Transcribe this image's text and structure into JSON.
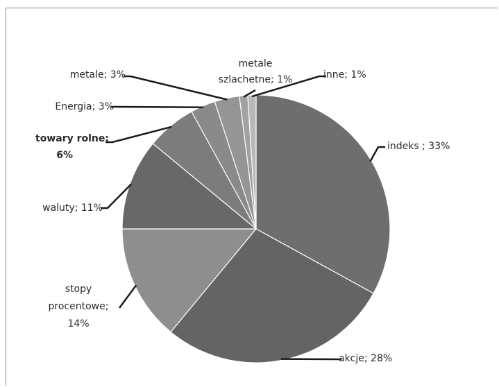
{
  "chart_data": {
    "type": "pie",
    "title": "",
    "slices": [
      {
        "key": "indeks",
        "lines": [
          "indeks ; 33%"
        ],
        "value": 33,
        "color": "#6e6e6e",
        "bold": false
      },
      {
        "key": "akcje",
        "lines": [
          "akcje; 28%"
        ],
        "value": 28,
        "color": "#646464",
        "bold": false
      },
      {
        "key": "stopy",
        "lines": [
          "stopy",
          "procentowe;",
          "14%"
        ],
        "value": 14,
        "color": "#8e8e8e",
        "bold": false
      },
      {
        "key": "waluty",
        "lines": [
          "waluty; 11%"
        ],
        "value": 11,
        "color": "#686868",
        "bold": false
      },
      {
        "key": "towary",
        "lines": [
          "towary rolne;",
          "6%"
        ],
        "value": 6,
        "color": "#7c7c7c",
        "bold": true
      },
      {
        "key": "energia",
        "lines": [
          "Energia; 3%"
        ],
        "value": 3,
        "color": "#8a8a8a",
        "bold": false
      },
      {
        "key": "metale",
        "lines": [
          "metale; 3%"
        ],
        "value": 3,
        "color": "#959595",
        "bold": false
      },
      {
        "key": "szlachetne",
        "lines": [
          "metale",
          "szlachetne; 1%"
        ],
        "value": 1,
        "color": "#a2a2a2",
        "bold": false
      },
      {
        "key": "inne",
        "lines": [
          "inne; 1%"
        ],
        "value": 1,
        "color": "#b8b8b8",
        "bold": false
      }
    ]
  }
}
